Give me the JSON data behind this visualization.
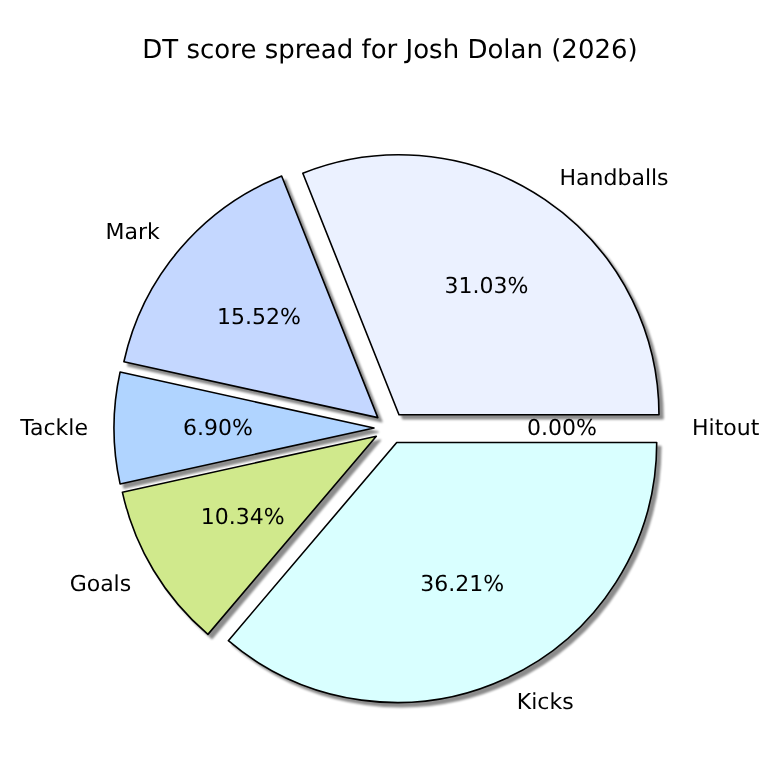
{
  "chart_data": {
    "type": "pie",
    "title": "DT score spread for Josh Dolan (2026)",
    "categories": [
      "Handballs",
      "Mark",
      "Tackle",
      "Goals",
      "Kicks",
      "Hitout"
    ],
    "values": [
      31.03,
      15.52,
      6.9,
      10.34,
      36.21,
      0.0
    ],
    "colors": [
      "#ebf1ff",
      "#c4d7ff",
      "#b0d4ff",
      "#d0e98c",
      "#d9ffff",
      "#ffffff"
    ],
    "value_labels": [
      "31.03%",
      "15.52%",
      "6.90%",
      "10.34%",
      "36.21%",
      "0.00%"
    ]
  }
}
